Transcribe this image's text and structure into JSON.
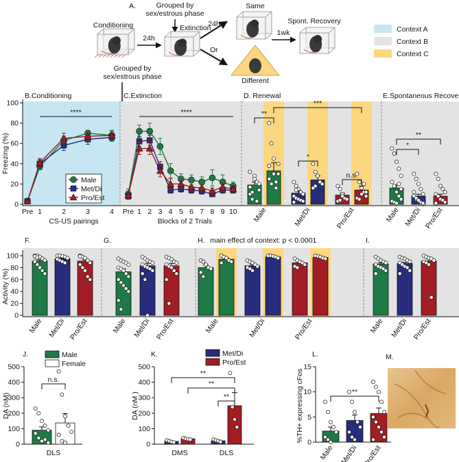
{
  "schematic": {
    "label": "A.",
    "steps": [
      "Conditioning",
      "Extinction",
      "Same",
      "Different",
      "Spont. Recovery"
    ],
    "delays": [
      "24h",
      "24h",
      "1wk"
    ],
    "or": "Or",
    "grouped": "Grouped by sex/estrous phase",
    "legend": [
      {
        "name": "Context A",
        "color": "#c6e6f2"
      },
      {
        "name": "Context B",
        "color": "#e3e3e3"
      },
      {
        "name": "Context C",
        "color": "#fcd77f"
      }
    ]
  },
  "image_panel": {
    "label": "M."
  },
  "chart_data": [
    {
      "type": "line",
      "label": "B.Conditioning",
      "ylabel": "Freezing (%)",
      "xlabel": "CS-US pairings",
      "background": "#c6e6f2",
      "legend": "lower right",
      "categories": [
        "Pre",
        "1",
        "2",
        "3",
        "4"
      ],
      "ylim": [
        0,
        100
      ],
      "yticks": [
        0,
        20,
        40,
        60,
        80,
        100
      ],
      "annotations": [
        "****"
      ],
      "series": [
        {
          "name": "Male",
          "color": "#1d7a45",
          "marker": "circle",
          "values": [
            3,
            37,
            63,
            70,
            68
          ],
          "errors": [
            1,
            3,
            4,
            3,
            5
          ]
        },
        {
          "name": "Met/Di",
          "color": "#272c7c",
          "marker": "square",
          "values": [
            3,
            40,
            58,
            64,
            66
          ],
          "errors": [
            1,
            4,
            5,
            5,
            4
          ]
        },
        {
          "name": "Pro/Est",
          "color": "#a21d24",
          "marker": "triangle",
          "values": [
            3,
            41,
            65,
            67,
            68
          ],
          "errors": [
            1,
            4,
            5,
            4,
            4
          ]
        }
      ]
    },
    {
      "type": "line",
      "label": "C.Extinction",
      "xlabel": "Blocks of 2 Trials",
      "background": "#e3e3e3",
      "categories": [
        "Pre",
        "1",
        "2",
        "3",
        "4",
        "5",
        "6",
        "7",
        "8",
        "9",
        "10"
      ],
      "ylim": [
        0,
        100
      ],
      "annotations": [
        "****"
      ],
      "series": [
        {
          "name": "Male",
          "color": "#1d7a45",
          "marker": "circle",
          "values": [
            10,
            72,
            72,
            57,
            33,
            25,
            24,
            22,
            26,
            22,
            18
          ],
          "errors": [
            5,
            6,
            8,
            8,
            7,
            5,
            5,
            5,
            8,
            7,
            4
          ]
        },
        {
          "name": "Met/Di",
          "color": "#272c7c",
          "marker": "square",
          "values": [
            8,
            62,
            63,
            37,
            14,
            15,
            14,
            13,
            10,
            14,
            14
          ],
          "errors": [
            3,
            5,
            5,
            5,
            3,
            3,
            3,
            3,
            2,
            3,
            3
          ]
        },
        {
          "name": "Pro/Est",
          "color": "#a21d24",
          "marker": "triangle",
          "values": [
            9,
            55,
            55,
            33,
            20,
            20,
            17,
            16,
            13,
            17,
            15
          ],
          "errors": [
            4,
            6,
            6,
            6,
            5,
            4,
            4,
            3,
            3,
            4,
            3
          ]
        }
      ]
    },
    {
      "type": "bar",
      "label": "D. Renewal",
      "background": "#e3e3e3",
      "categories": [
        "Male",
        "Met/Di",
        "Pro/Est"
      ],
      "ylim": [
        0,
        100
      ],
      "annotations": [
        "**",
        "***",
        "*",
        "n.s."
      ],
      "series": [
        {
          "colors": [
            "#1d7a45",
            "#272c7c",
            "#a21d24"
          ],
          "values": [
            19,
            11,
            9
          ],
          "errors": [
            3,
            2,
            2
          ],
          "points": [
            [
              10,
              5,
              28,
              22,
              14,
              32,
              12,
              25,
              3,
              20,
              17
            ],
            [
              22,
              18,
              15,
              12,
              10,
              8,
              6,
              5,
              4,
              3,
              2,
              14
            ],
            [
              18,
              15,
              10,
              6,
              5,
              3,
              4,
              8
            ]
          ]
        },
        {
          "colors": [
            "#1d7a45",
            "#272c7c",
            "#a21d24"
          ],
          "background": "#fcd77f",
          "values": [
            33,
            24,
            14
          ],
          "errors": [
            8,
            4,
            4
          ],
          "points": [
            [
              80,
              60,
              45,
              22,
              30,
              25,
              20,
              30,
              16,
              40,
              38
            ],
            [
              40,
              32,
              28,
              22,
              20,
              16,
              18
            ],
            [
              30,
              22,
              16,
              12,
              8,
              6,
              5,
              10,
              20,
              12
            ]
          ]
        }
      ]
    },
    {
      "type": "bar",
      "label": "E.Spontaneous Recovery",
      "background": "#e3e3e3",
      "categories": [
        "Male",
        "Met/Di",
        "Pro/Est"
      ],
      "ylim": [
        0,
        100
      ],
      "annotations": [
        "*",
        "**"
      ],
      "series": [
        {
          "colors": [
            "#1d7a45",
            "#272c7c",
            "#a21d24"
          ],
          "values": [
            16,
            8,
            8
          ],
          "errors": [
            3,
            2,
            2
          ],
          "points": [
            [
              55,
              50,
              42,
              35,
              28,
              22,
              18,
              12,
              8,
              5,
              3,
              2,
              1,
              20,
              15
            ],
            [
              30,
              25,
              20,
              15,
              10,
              8,
              5,
              3,
              2,
              1,
              12,
              6,
              4
            ],
            [
              30,
              25,
              18,
              15,
              12,
              10,
              8,
              5,
              4,
              2,
              1
            ]
          ]
        }
      ]
    },
    {
      "type": "bar",
      "label": "F.",
      "ylabel": "Activity (%)",
      "background": "#e3e3e3",
      "categories": [
        "Male",
        "Met/Di",
        "Pro/Est"
      ],
      "ylim": [
        0,
        100
      ],
      "yticks": [
        0,
        20,
        40,
        60,
        80,
        100
      ],
      "series": [
        {
          "colors": [
            "#1d7a45",
            "#272c7c",
            "#a21d24"
          ],
          "values": [
            91,
            95,
            91
          ],
          "errors": [
            2,
            1,
            2
          ],
          "points": [
            [
              100,
              100,
              98,
              95,
              92,
              90,
              85,
              80,
              75,
              70,
              99,
              97
            ],
            [
              100,
              100,
              99,
              98,
              96,
              94,
              92,
              90,
              88
            ],
            [
              100,
              98,
              96,
              92,
              88,
              85,
              80,
              75,
              65,
              60,
              99
            ]
          ]
        }
      ]
    },
    {
      "type": "bar",
      "label": "G.",
      "background": "#e3e3e3",
      "categories": [
        "Male",
        "Met/Di",
        "Pro/Est"
      ],
      "ylim": [
        0,
        100
      ],
      "series": [
        {
          "colors": [
            "#1d7a45",
            "#272c7c",
            "#a21d24"
          ],
          "values": [
            73,
            83,
            83
          ],
          "errors": [
            5,
            4,
            4
          ],
          "points": [
            [
              95,
              92,
              90,
              88,
              85,
              80,
              78,
              75,
              70,
              65,
              60,
              55,
              50,
              45,
              40,
              25,
              10
            ],
            [
              98,
              95,
              92,
              90,
              88,
              85,
              82,
              80,
              78,
              75,
              70,
              60,
              0
            ],
            [
              98,
              96,
              94,
              90,
              88,
              85,
              82,
              80,
              75,
              70,
              60,
              20
            ]
          ]
        }
      ]
    },
    {
      "type": "bar",
      "label": "H.",
      "background": "#e3e3e3",
      "categories": [
        "Male",
        "Met/Di",
        "Pro/Est"
      ],
      "ylim": [
        0,
        100
      ],
      "annotations": [
        "main effect of context: p < 0.0001"
      ],
      "series": [
        {
          "colors": [
            "#1d7a45",
            "#272c7c",
            "#a21d24"
          ],
          "values": [
            80,
            83,
            88
          ],
          "errors": [
            4,
            2,
            3
          ],
          "points": [
            [
              92,
              90,
              85,
              80,
              78,
              72,
              65
            ],
            [
              92,
              90,
              88,
              85,
              82,
              80,
              78,
              75
            ],
            [
              95,
              92,
              90,
              88,
              85,
              82,
              80
            ]
          ]
        },
        {
          "colors": [
            "#1d7a45",
            "#272c7c",
            "#a21d24"
          ],
          "background": "#fcd77f",
          "values": [
            94,
            98,
            97
          ],
          "errors": [
            2,
            1,
            1
          ],
          "points": [
            [
              100,
              98,
              96,
              92,
              90,
              88
            ],
            [
              100,
              100,
              99,
              98,
              96
            ],
            [
              100,
              99,
              98,
              96,
              95
            ]
          ]
        }
      ]
    },
    {
      "type": "bar",
      "label": "I.",
      "background": "#e3e3e3",
      "categories": [
        "Male",
        "Met/Di",
        "Pro/Est"
      ],
      "ylim": [
        0,
        100
      ],
      "series": [
        {
          "colors": [
            "#1d7a45",
            "#272c7c",
            "#a21d24"
          ],
          "values": [
            86,
            87,
            91
          ],
          "errors": [
            2,
            2,
            4
          ],
          "points": [
            [
              98,
              95,
              92,
              90,
              88,
              85,
              82,
              80,
              78,
              75,
              70
            ],
            [
              98,
              96,
              95,
              92,
              90,
              88,
              85,
              82,
              80,
              75,
              70
            ],
            [
              100,
              98,
              96,
              95,
              92,
              90,
              88,
              85,
              30
            ]
          ]
        }
      ]
    },
    {
      "type": "bar",
      "label": "J.",
      "ylabel": "DA (nM)",
      "categories": [
        "DLS"
      ],
      "ylim": [
        0,
        500
      ],
      "yticks": [
        0,
        100,
        200,
        300,
        400,
        500
      ],
      "annotations": [
        "n.s."
      ],
      "series": [
        {
          "name": "Male",
          "color": "#1d7a45",
          "values": [
            90
          ],
          "errors": [
            22
          ],
          "points": [
            [
              230,
              200,
              150,
              120,
              90,
              70,
              40,
              20,
              30,
              10
            ]
          ]
        },
        {
          "name": "Female",
          "color": "#ffffff",
          "values": [
            137
          ],
          "errors": [
            60
          ],
          "points": [
            [
              470,
              320,
              180,
              120,
              80,
              60,
              20,
              10
            ]
          ]
        }
      ]
    },
    {
      "type": "bar",
      "label": "K.",
      "ylabel": "DA (nM )",
      "categories": [
        "DMS",
        "DLS"
      ],
      "ylim": [
        0,
        500
      ],
      "yticks": [
        0,
        100,
        200,
        300,
        400,
        500
      ],
      "annotations": [
        "**",
        "**",
        "**"
      ],
      "series": [
        {
          "name": "Met/Di",
          "color": "#272c7c",
          "values": [
            18,
            22
          ],
          "errors": [
            3,
            5
          ],
          "points": [
            [
              25,
              20,
              15,
              12
            ],
            [
              30,
              25,
              20,
              15
            ]
          ]
        },
        {
          "name": "Pro/Est",
          "color": "#a21d24",
          "values": [
            35,
            248
          ],
          "errors": [
            5,
            85
          ],
          "points": [
            [
              40,
              35,
              32,
              30
            ],
            [
              460,
              240,
              160,
              110
            ]
          ]
        }
      ]
    },
    {
      "type": "bar",
      "label": "L.",
      "ylabel": "%TH+ expressing cFos",
      "categories": [
        "Male",
        "Met/Di",
        "Pro/Est"
      ],
      "ylim": [
        0,
        15
      ],
      "yticks": [
        0,
        5,
        10,
        15
      ],
      "annotations": [
        "**"
      ],
      "series": [
        {
          "colors": [
            "#1d7a45",
            "#272c7c",
            "#a21d24"
          ],
          "values": [
            2.2,
            4.3,
            5.7
          ],
          "errors": [
            0.8,
            1.1,
            1.1
          ],
          "points": [
            [
              8,
              6,
              4,
              3,
              2,
              1,
              0.5,
              0
            ],
            [
              10,
              8,
              6,
              4,
              3,
              2,
              1,
              0.5
            ],
            [
              12,
              11,
              10,
              8,
              6,
              5,
              4,
              3,
              2,
              1,
              0.5
            ]
          ]
        }
      ]
    }
  ]
}
